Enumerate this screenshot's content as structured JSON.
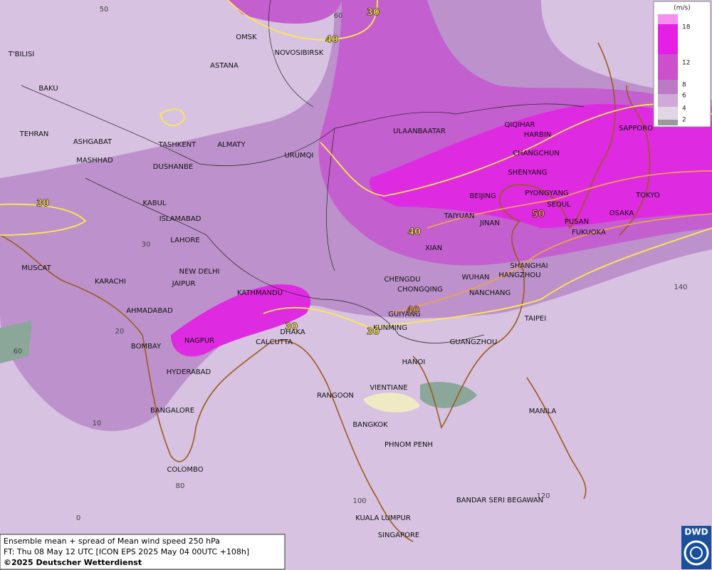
{
  "map": {
    "cities": [
      "OMSK",
      "NOVOSIBIRSK",
      "ASTANA",
      "T'BILISI",
      "BAKU",
      "TEHRAN",
      "ASHGABAT",
      "MASHHAD",
      "TASHKENT",
      "ALMATY",
      "DUSHANBE",
      "URUMQI",
      "ULAANBAATAR",
      "QIQIHAR",
      "HARBIN",
      "CHANGCHUN",
      "SHENYANG",
      "SAPPORO",
      "BEIJING",
      "PYONGYANG",
      "SEOUL",
      "TOKYO",
      "TAIYUAN",
      "JINAN",
      "PUSAN",
      "OSAKA",
      "FUKUOKA",
      "XIAN",
      "KABUL",
      "ISLAMABAD",
      "LAHORE",
      "NEW DELHI",
      "MUSCAT",
      "KARACHI",
      "JAIPUR",
      "KATHMANDU",
      "CHENGDU",
      "CHONGQING",
      "WUHAN",
      "SHANGHAI",
      "HANGZHOU",
      "NANCHANG",
      "GUIYANG",
      "AHMADABAD",
      "KUNMING",
      "TAIPEI",
      "DHAKA",
      "CALCUTTA",
      "NAGPUR",
      "BOMBAY",
      "GUANGZHOU",
      "HYDERABAD",
      "HANOI",
      "RANGOON",
      "VIENTIANE",
      "BANGALORE",
      "MANILA",
      "BANGKOK",
      "PHNOM PENH",
      "COLOMBO",
      "BANDAR SERI BEGAWAN",
      "KUALA LUMPUR",
      "SINGAPORE"
    ],
    "grid_labels": [
      50,
      60,
      30,
      20,
      60,
      10,
      140,
      80,
      0,
      120,
      100
    ],
    "contour_labels": [
      30,
      40,
      30,
      40,
      50,
      30,
      30,
      40
    ]
  },
  "legend": {
    "unit": "(m/s)",
    "levels": [
      18,
      12,
      8,
      6,
      4,
      2
    ]
  },
  "footer": {
    "line1": "Ensemble mean + spread of Mean wind speed 250 hPa",
    "line2": "FT: Thu 08 May 12 UTC [ICON EPS 2025 May 04 00UTC +108h]",
    "line3": "©2025 Deutscher Wetterdienst"
  },
  "logo": "DWD"
}
